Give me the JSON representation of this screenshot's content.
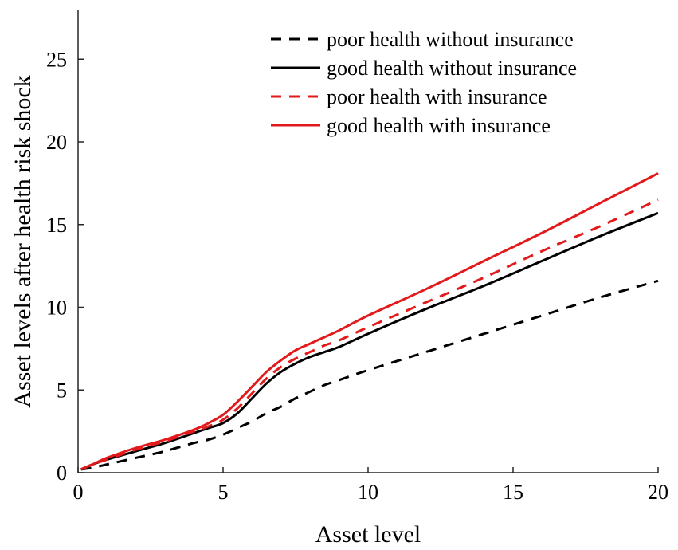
{
  "chart_data": {
    "type": "line",
    "xlabel": "Asset level",
    "ylabel": "Asset levels after health risk shock",
    "xlim": [
      0,
      20
    ],
    "ylim": [
      0,
      28
    ],
    "xticks": [
      0,
      5,
      10,
      15,
      20
    ],
    "yticks": [
      0,
      5,
      10,
      15,
      20,
      25
    ],
    "grid": false,
    "legend_position": "top-right",
    "x": [
      0.1,
      0.5,
      1,
      2,
      3,
      4,
      4.5,
      5,
      5.5,
      6,
      6.5,
      7,
      7.5,
      8,
      8.5,
      9,
      10,
      12,
      14,
      16,
      18,
      20
    ],
    "series": [
      {
        "name": "poor health without insurance",
        "color": "#000000",
        "dash": true,
        "values": [
          0.2,
          0.3,
          0.5,
          0.9,
          1.3,
          1.8,
          2.0,
          2.3,
          2.7,
          3.1,
          3.6,
          4.0,
          4.5,
          4.9,
          5.3,
          5.6,
          6.2,
          7.3,
          8.4,
          9.5,
          10.6,
          11.6
        ]
      },
      {
        "name": "good health without insurance",
        "color": "#000000",
        "dash": false,
        "values": [
          0.2,
          0.5,
          0.8,
          1.3,
          1.8,
          2.4,
          2.7,
          3.0,
          3.6,
          4.5,
          5.4,
          6.1,
          6.6,
          7.0,
          7.3,
          7.6,
          8.4,
          9.9,
          11.3,
          12.8,
          14.3,
          15.7
        ]
      },
      {
        "name": "poor health with insurance",
        "color": "#e31a1c",
        "dash": true,
        "values": [
          0.2,
          0.5,
          0.8,
          1.4,
          1.9,
          2.5,
          2.8,
          3.2,
          3.9,
          4.8,
          5.7,
          6.4,
          6.9,
          7.3,
          7.7,
          8.0,
          8.8,
          10.3,
          11.8,
          13.4,
          14.9,
          16.5
        ]
      },
      {
        "name": "good health with insurance",
        "color": "#e31a1c",
        "dash": false,
        "values": [
          0.2,
          0.5,
          0.9,
          1.5,
          2.0,
          2.6,
          3.0,
          3.5,
          4.3,
          5.2,
          6.1,
          6.8,
          7.4,
          7.8,
          8.2,
          8.6,
          9.5,
          11.1,
          12.8,
          14.5,
          16.3,
          18.1
        ]
      }
    ]
  }
}
